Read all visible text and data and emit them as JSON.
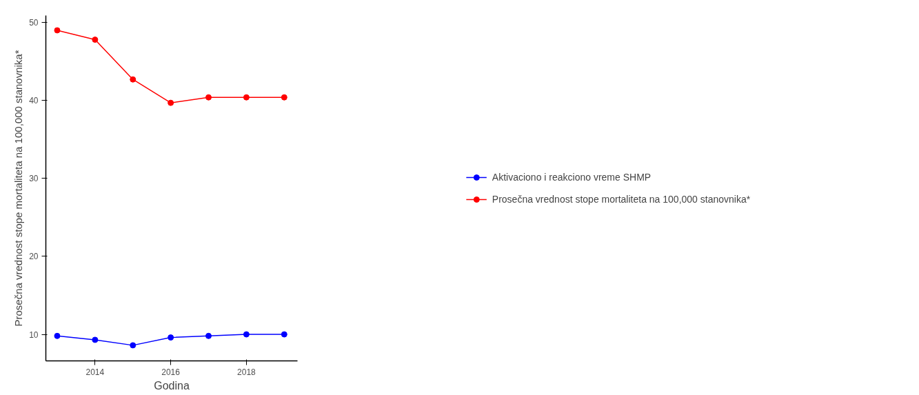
{
  "chart_data": {
    "type": "line",
    "xlabel": "Godina",
    "ylabel": "Prosečna vrednost stope mortaliteta na 100,000 stanovnika*",
    "x": [
      2013,
      2014,
      2015,
      2016,
      2017,
      2018,
      2019
    ],
    "series": [
      {
        "name": "Aktivaciono i reakciono vreme SHMP",
        "color": "#0000ff",
        "values": [
          9.8,
          9.3,
          8.6,
          9.6,
          9.8,
          10.0,
          10.0
        ]
      },
      {
        "name": "Prosečna vrednost stope mortaliteta na 100,000 stanovnika*",
        "color": "#ff0000",
        "values": [
          49.0,
          47.8,
          42.7,
          39.7,
          40.4,
          40.4,
          40.4
        ]
      }
    ],
    "xlim": [
      2012.7,
      2019.35
    ],
    "ylim": [
      6.6,
      50.9
    ],
    "xticks": [
      2014,
      2016,
      2018
    ],
    "yticks": [
      10,
      20,
      30,
      40,
      50
    ],
    "grid": false,
    "legend": "right",
    "marker": "circle",
    "line_style": "solid"
  }
}
